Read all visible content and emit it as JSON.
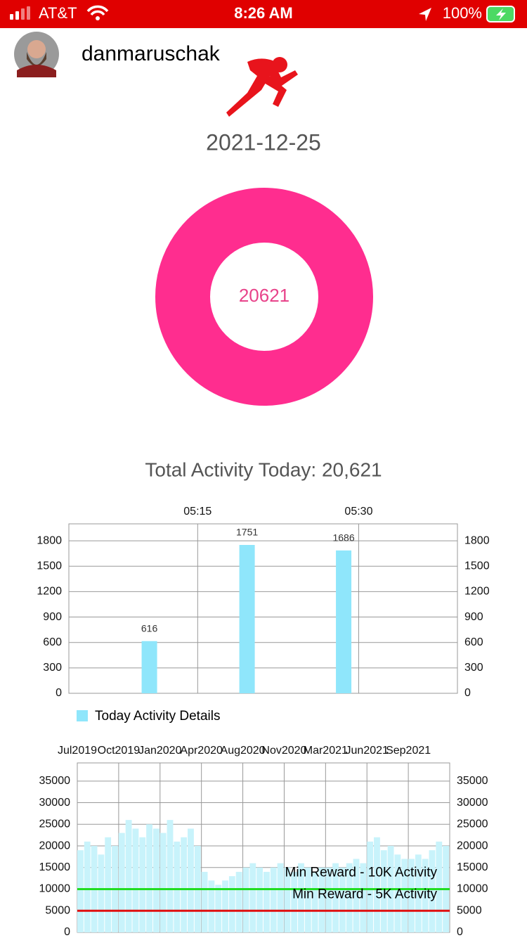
{
  "status_bar": {
    "carrier": "AT&T",
    "time": "8:26 AM",
    "battery": "100%"
  },
  "header": {
    "username": "danmaruschak"
  },
  "date": "2021-12-25",
  "donut": {
    "value": 20621,
    "color": "#ff2d8f"
  },
  "total_label": "Total Activity Today: 20,621",
  "chart_data": [
    {
      "type": "bar",
      "series_name": "Today Activity Details",
      "color": "#8fe6fb",
      "x": [
        310.5,
        319.6,
        328.6
      ],
      "values": [
        616,
        1751,
        1686
      ],
      "xlim": [
        303,
        339.2
      ],
      "xticks": [
        {
          "value": 315,
          "label": "05:15"
        },
        {
          "value": 330,
          "label": "05:30"
        }
      ],
      "ylim": [
        0,
        2000
      ],
      "yticks": [
        0,
        300,
        600,
        900,
        1200,
        1500,
        1800
      ],
      "grid": true
    },
    {
      "type": "bar",
      "color": "#c8f3fb",
      "categories": [
        "Jul2019",
        null,
        null,
        null,
        null,
        null,
        "Oct2019",
        null,
        null,
        null,
        null,
        null,
        "Jan2020",
        null,
        null,
        null,
        null,
        null,
        "Apr2020",
        null,
        null,
        null,
        null,
        null,
        "Aug2020",
        null,
        null,
        null,
        null,
        null,
        "Nov2020",
        null,
        null,
        null,
        null,
        null,
        "Mar2021",
        null,
        null,
        null,
        null,
        null,
        "Jun2021",
        null,
        null,
        null,
        null,
        null,
        "Sep2021",
        null,
        null,
        null,
        null,
        null
      ],
      "values": [
        19000,
        21000,
        20000,
        18000,
        22000,
        20000,
        23000,
        26000,
        24000,
        22000,
        25000,
        24000,
        23000,
        26000,
        21000,
        22000,
        24000,
        20000,
        14000,
        12000,
        11000,
        12000,
        13000,
        14000,
        15000,
        16000,
        15000,
        14000,
        15000,
        16000,
        15000,
        14000,
        16000,
        15000,
        14000,
        15000,
        15000,
        16000,
        15000,
        16000,
        17000,
        16000,
        21000,
        22000,
        19000,
        20000,
        18000,
        17000,
        17000,
        18000,
        17000,
        19000,
        21000,
        20000
      ],
      "ylim": [
        0,
        39200
      ],
      "yticks": [
        0,
        5000,
        10000,
        15000,
        20000,
        25000,
        30000,
        35000
      ],
      "grid": true,
      "reference_lines": [
        {
          "value": 10000,
          "label": "Min Reward - 10K Activity",
          "color": "#22dd22"
        },
        {
          "value": 5000,
          "label": "Min Reward - 5K Activity",
          "color": "#e01010"
        }
      ]
    }
  ]
}
